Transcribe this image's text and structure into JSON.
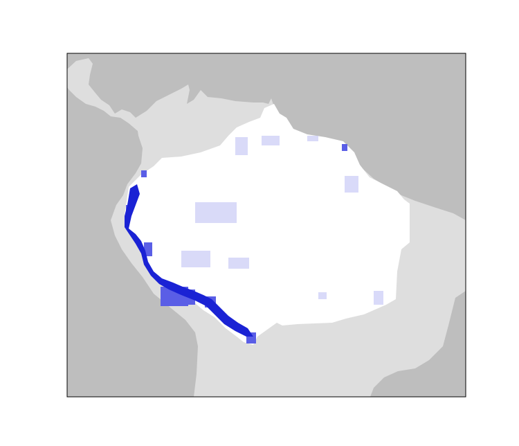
{
  "map": {
    "colors": {
      "ocean": "#bebebe",
      "land": "#dedede",
      "region_base": "#ffffff",
      "high_intensity": "#1a22d4",
      "mid_intensity": "#5a5ee6",
      "low_intensity": "#c9cbf6",
      "frame": "#000000"
    },
    "legend": null
  }
}
